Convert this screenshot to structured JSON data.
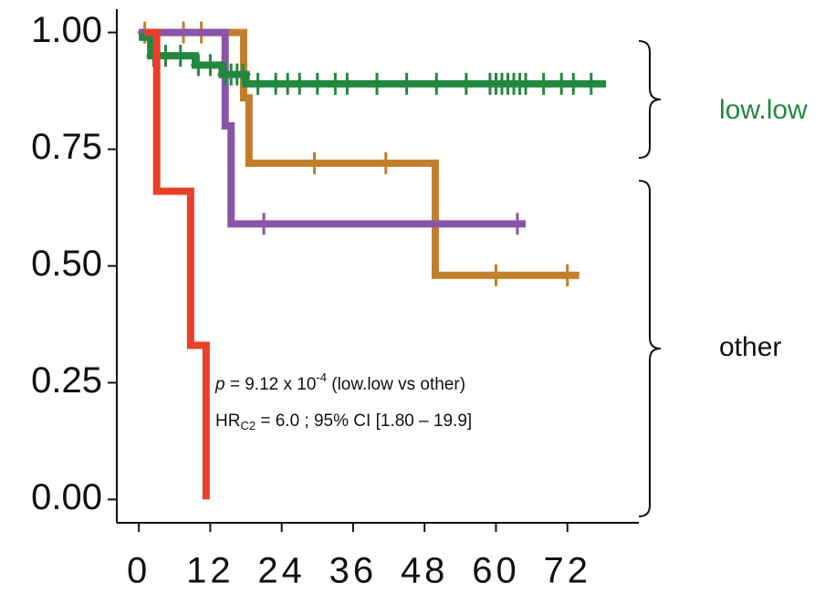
{
  "chart_data": {
    "type": "step",
    "xlim": [
      -3.7,
      84
    ],
    "ylim": [
      -0.05,
      1.05
    ],
    "xticks": [
      0,
      12,
      24,
      36,
      48,
      60,
      72
    ],
    "yticks": [
      {
        "value": 0,
        "label": "0.00"
      },
      0.25,
      {
        "value": 0.5,
        "label": "0.50"
      },
      0.75,
      {
        "value": 1,
        "label": "1.00"
      }
    ],
    "series": [
      {
        "color": "#c17f2c",
        "x": [
          0,
          17.6,
          18.5,
          49.8,
          74
        ],
        "values": [
          1,
          0.86,
          0.72,
          0.48,
          0.48
        ],
        "censor_x": [
          1,
          7.5,
          10.5,
          29.5,
          41.5,
          60,
          72
        ],
        "censor_values": [
          1,
          1,
          1,
          0.72,
          0.72,
          0.48,
          0.48
        ]
      },
      {
        "color": "#8a55a8",
        "x": [
          0,
          14.5,
          15.5,
          65
        ],
        "values": [
          1,
          0.8,
          0.59,
          0.59
        ],
        "censor_x": [
          21,
          63.6
        ],
        "censor_values": [
          0.59,
          0.59
        ]
      },
      {
        "color": "#23883f",
        "x": [
          0,
          2,
          9.5,
          14,
          18,
          78.5
        ],
        "values": [
          0.99,
          0.95,
          0.93,
          0.91,
          0.89,
          0.89
        ],
        "censor_x": [
          2.5,
          4.5,
          7,
          10,
          12,
          14.5,
          15.5,
          16.5,
          17.5,
          20,
          23,
          25,
          27,
          30,
          33,
          35,
          40,
          45,
          50,
          55,
          59,
          60,
          61,
          62,
          63,
          64,
          65,
          68,
          71,
          73,
          76
        ],
        "censor_values": [
          0.95,
          0.95,
          0.95,
          0.93,
          0.93,
          0.91,
          0.91,
          0.91,
          0.91,
          0.89,
          0.89,
          0.89,
          0.89,
          0.89,
          0.89,
          0.89,
          0.89,
          0.89,
          0.89,
          0.89,
          0.89,
          0.89,
          0.89,
          0.89,
          0.89,
          0.89,
          0.89,
          0.89,
          0.89,
          0.89,
          0.89
        ]
      },
      {
        "color": "#e8402a",
        "x": [
          1,
          3,
          8.7,
          11.3
        ],
        "values": [
          1,
          0.66,
          0.33,
          0
        ],
        "censor_x": [],
        "censor_values": []
      }
    ],
    "groups": [
      {
        "label": "low.low",
        "color": "#23883f"
      },
      {
        "label": "other",
        "color": "#111111"
      }
    ],
    "annotation_p": {
      "italic": "p",
      "text": " = 9.12 x 10",
      "sup": "-4",
      "rest": " (low.low vs other)"
    },
    "annotation_hr": {
      "text": "HR",
      "sub": "C2",
      "rest": " = 6.0 ; 95% CI [1.80 – 19.9]"
    }
  }
}
